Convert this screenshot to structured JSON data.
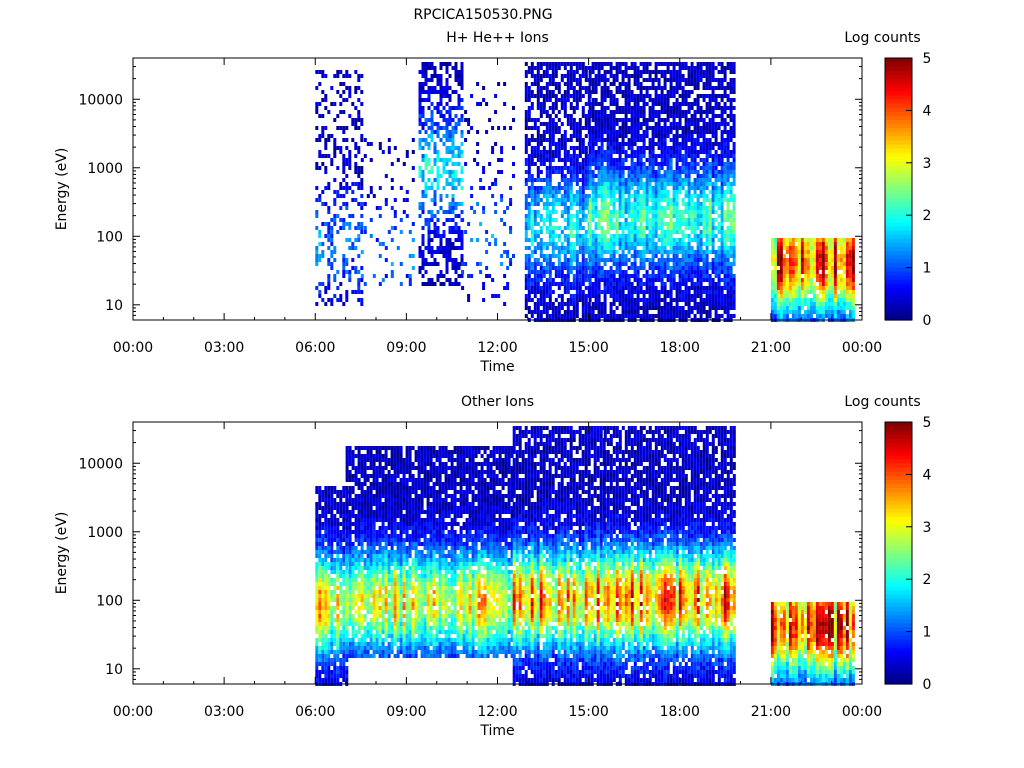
{
  "figure": {
    "title": "RPCICA150530.PNG"
  },
  "chart_data": [
    {
      "type": "heatmap",
      "title": "H+ He++ Ions",
      "xlabel": "Time",
      "ylabel": "Energy (eV)",
      "x_ticks": [
        "00:00",
        "03:00",
        "06:00",
        "09:00",
        "12:00",
        "15:00",
        "18:00",
        "21:00",
        "00:00"
      ],
      "x_range_hours": [
        0,
        24
      ],
      "y_scale": "log",
      "y_range": [
        6,
        40000
      ],
      "y_ticks": [
        {
          "value": 10,
          "label": "10"
        },
        {
          "value": 100,
          "label": "100"
        },
        {
          "value": 1000,
          "label": "1000"
        },
        {
          "value": 10000,
          "label": "10000"
        }
      ],
      "colorbar": {
        "label": "Log counts",
        "min": 0,
        "max": 5,
        "ticks": [
          "0",
          "1",
          "2",
          "3",
          "4",
          "5"
        ],
        "colormap": "jet"
      },
      "grid": false,
      "segments": [
        {
          "t_start": 6.0,
          "t_end": 7.5,
          "e_min": 10,
          "e_max": 30000,
          "intensity": 1.0,
          "peak_energy": 80,
          "density": 0.35
        },
        {
          "t_start": 7.5,
          "t_end": 9.2,
          "e_min": 20,
          "e_max": 3000,
          "intensity": 0.9,
          "peak_energy": 60,
          "density": 0.12
        },
        {
          "t_start": 9.4,
          "t_end": 10.8,
          "e_min": 20,
          "e_max": 40000,
          "intensity": 1.4,
          "peak_energy": 1000,
          "density": 0.55
        },
        {
          "t_start": 10.8,
          "t_end": 12.5,
          "e_min": 10,
          "e_max": 20000,
          "intensity": 0.9,
          "peak_energy": 100,
          "density": 0.12
        },
        {
          "t_start": 12.9,
          "t_end": 15.0,
          "e_min": 6,
          "e_max": 40000,
          "intensity": 1.5,
          "peak_energy": 150,
          "density": 0.75
        },
        {
          "t_start": 15.0,
          "t_end": 19.8,
          "e_min": 6,
          "e_max": 40000,
          "intensity": 1.8,
          "peak_energy": 200,
          "density": 0.85
        },
        {
          "t_start": 21.0,
          "t_end": 23.7,
          "e_min": 6,
          "e_max": 100,
          "intensity": 3.8,
          "peak_energy": 45,
          "density": 0.95
        }
      ]
    },
    {
      "type": "heatmap",
      "title": "Other Ions",
      "xlabel": "Time",
      "ylabel": "Energy (eV)",
      "x_ticks": [
        "00:00",
        "03:00",
        "06:00",
        "09:00",
        "12:00",
        "15:00",
        "18:00",
        "21:00",
        "00:00"
      ],
      "x_range_hours": [
        0,
        24
      ],
      "y_scale": "log",
      "y_range": [
        6,
        40000
      ],
      "y_ticks": [
        {
          "value": 10,
          "label": "10"
        },
        {
          "value": 100,
          "label": "100"
        },
        {
          "value": 1000,
          "label": "1000"
        },
        {
          "value": 10000,
          "label": "10000"
        }
      ],
      "colorbar": {
        "label": "Log counts",
        "min": 0,
        "max": 5,
        "ticks": [
          "0",
          "1",
          "2",
          "3",
          "4",
          "5"
        ],
        "colormap": "jet"
      },
      "grid": false,
      "segments": [
        {
          "t_start": 6.0,
          "t_end": 7.0,
          "e_min": 6,
          "e_max": 5000,
          "intensity": 3.0,
          "peak_energy": 90,
          "density": 0.9
        },
        {
          "t_start": 7.0,
          "t_end": 12.5,
          "e_min": 15,
          "e_max": 20000,
          "intensity": 2.8,
          "peak_energy": 100,
          "density": 0.9
        },
        {
          "t_start": 12.5,
          "t_end": 15.5,
          "e_min": 6,
          "e_max": 40000,
          "intensity": 3.3,
          "peak_energy": 110,
          "density": 0.9
        },
        {
          "t_start": 15.5,
          "t_end": 19.8,
          "e_min": 6,
          "e_max": 40000,
          "intensity": 3.6,
          "peak_energy": 110,
          "density": 0.9
        },
        {
          "t_start": 21.0,
          "t_end": 23.7,
          "e_min": 6,
          "e_max": 100,
          "intensity": 3.8,
          "peak_energy": 45,
          "density": 0.95
        }
      ]
    }
  ]
}
